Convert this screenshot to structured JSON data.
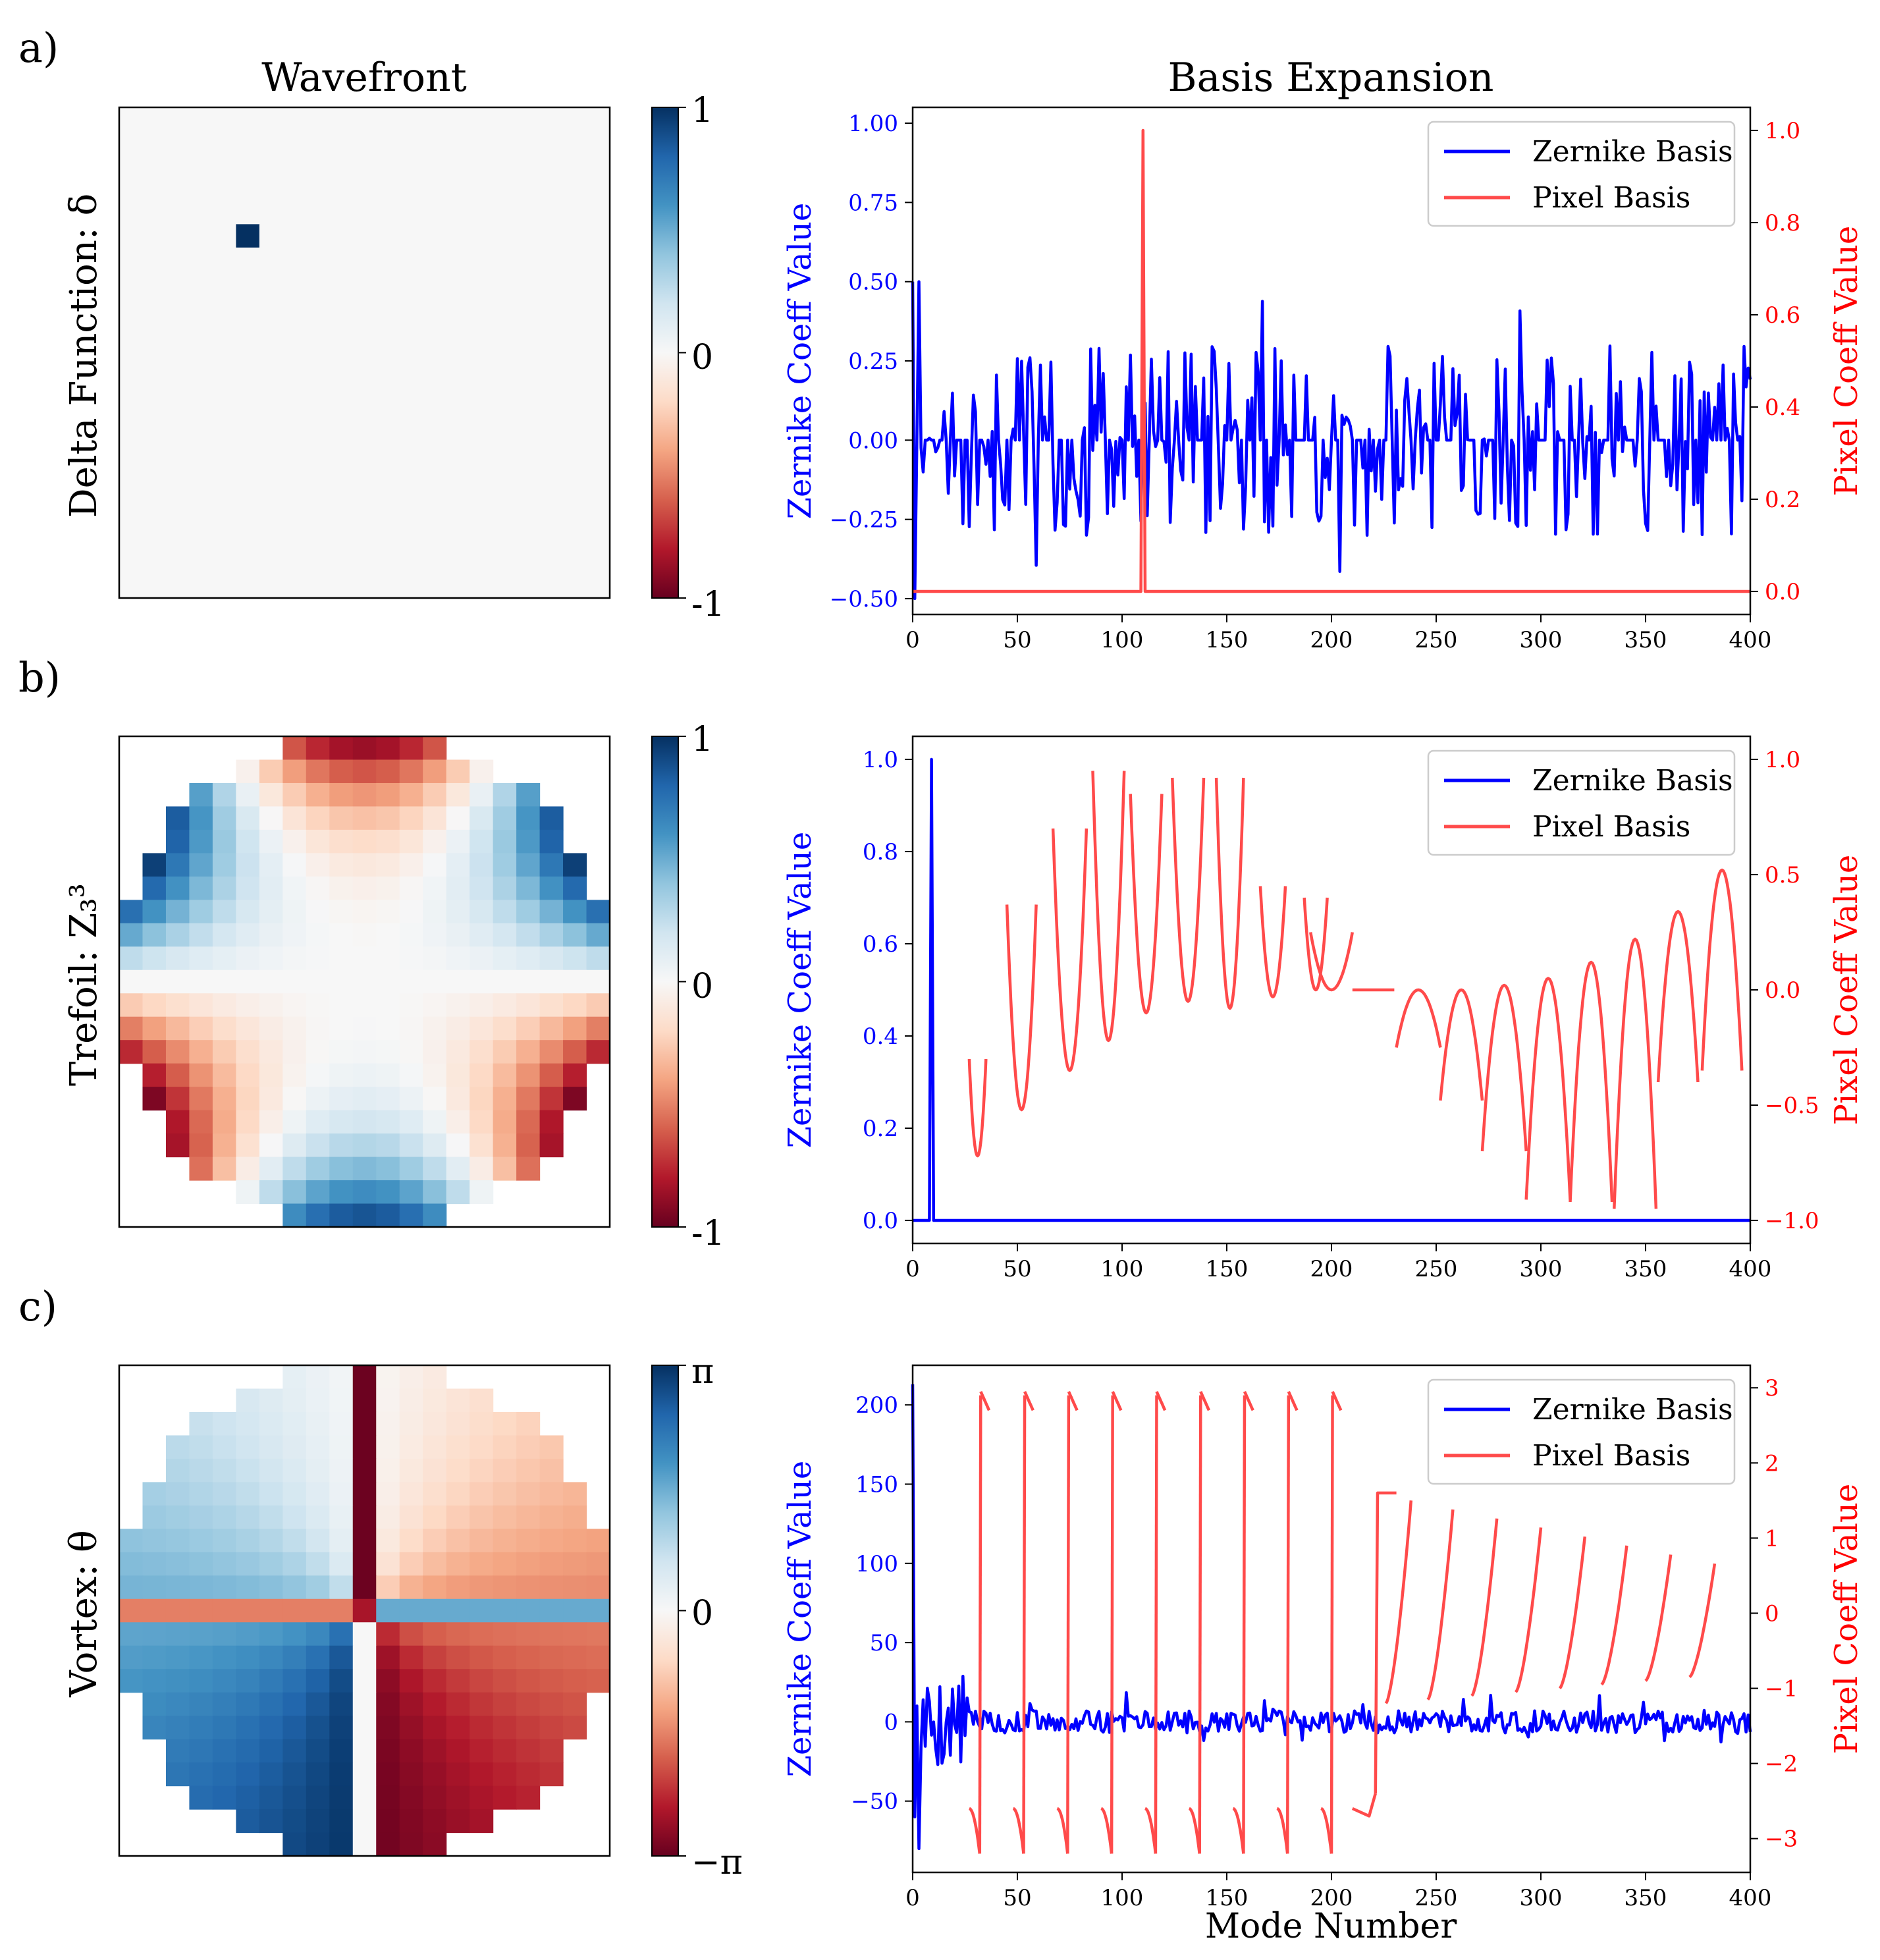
{
  "panel_letters": [
    "a)",
    "b)",
    "c)"
  ],
  "column_titles": {
    "wavefront": "Wavefront",
    "basis": "Basis Expansion"
  },
  "colors": {
    "zernike": "#0000ff",
    "pixel": "#ff4a4a",
    "pixel_axis": "#ff0000"
  },
  "chart_data": [
    {
      "type": "heatmap",
      "row": 0,
      "row_label": "Delta Function: δ",
      "grid": 21,
      "pattern": "delta",
      "delta_cell": [
        5,
        5
      ],
      "colorbar": {
        "ticks": [
          "1",
          "0",
          "-1"
        ],
        "range": [
          -1,
          1
        ]
      }
    },
    {
      "type": "line",
      "row": 0,
      "xlabel": "",
      "x_ticks": [
        "0",
        "50",
        "100",
        "150",
        "200",
        "250",
        "300",
        "350",
        "400"
      ],
      "xlim": [
        0,
        400
      ],
      "left_axis": {
        "label": "Zernike Coeff Value",
        "ylim": [
          -0.55,
          1.05
        ],
        "ticks": [
          -0.5,
          -0.25,
          0.0,
          0.25,
          0.5,
          0.75,
          1.0
        ],
        "tick_labels": [
          "−0.50",
          "−0.25",
          "0.00",
          "0.25",
          "0.50",
          "0.75",
          "1.00"
        ]
      },
      "right_axis": {
        "label": "Pixel Coeff Value",
        "ylim": [
          -0.05,
          1.05
        ],
        "ticks": [
          0.0,
          0.2,
          0.4,
          0.6,
          0.8,
          1.0
        ],
        "tick_labels": [
          "0.0",
          "0.2",
          "0.4",
          "0.6",
          "0.8",
          "1.0"
        ]
      },
      "legend": {
        "position": "top-right",
        "entries": [
          "Zernike Basis",
          "Pixel Basis"
        ]
      },
      "series": [
        {
          "name": "Zernike Basis",
          "axis": "left",
          "generator": "zernike_delta",
          "seed": 17
        },
        {
          "name": "Pixel Basis",
          "axis": "right",
          "generator": "pixel_delta",
          "spike_at": 110
        }
      ]
    },
    {
      "type": "heatmap",
      "row": 1,
      "row_label": "Trefoil: Z₃³",
      "grid": 21,
      "pattern": "trefoil",
      "colorbar": {
        "ticks": [
          "1",
          "0",
          "-1"
        ],
        "range": [
          -1,
          1
        ]
      }
    },
    {
      "type": "line",
      "row": 1,
      "xlabel": "",
      "x_ticks": [
        "0",
        "50",
        "100",
        "150",
        "200",
        "250",
        "300",
        "350",
        "400"
      ],
      "xlim": [
        0,
        400
      ],
      "left_axis": {
        "label": "Zernike Coeff Value",
        "ylim": [
          -0.05,
          1.05
        ],
        "ticks": [
          0.0,
          0.2,
          0.4,
          0.6,
          0.8,
          1.0
        ],
        "tick_labels": [
          "0.0",
          "0.2",
          "0.4",
          "0.6",
          "0.8",
          "1.0"
        ]
      },
      "right_axis": {
        "label": "Pixel Coeff Value",
        "ylim": [
          -1.1,
          1.1
        ],
        "ticks": [
          -1.0,
          -0.5,
          0.0,
          0.5,
          1.0
        ],
        "tick_labels": [
          "−1.0",
          "−0.5",
          "0.0",
          "0.5",
          "1.0"
        ]
      },
      "legend": {
        "position": "top-right",
        "entries": [
          "Zernike Basis",
          "Pixel Basis"
        ]
      },
      "series": [
        {
          "name": "Zernike Basis",
          "axis": "left",
          "generator": "zernike_trefoil",
          "spike_at": 9,
          "spike_value": 1.0
        },
        {
          "name": "Pixel Basis",
          "axis": "right",
          "generator": "pixel_trefoil"
        }
      ]
    },
    {
      "type": "heatmap",
      "row": 2,
      "row_label": "Vortex: θ",
      "grid": 21,
      "pattern": "vortex",
      "colorbar": {
        "ticks": [
          "π",
          "0",
          "−π"
        ],
        "range": [
          -3.14159,
          3.14159
        ]
      }
    },
    {
      "type": "line",
      "row": 2,
      "xlabel": "Mode Number",
      "x_ticks": [
        "0",
        "50",
        "100",
        "150",
        "200",
        "250",
        "300",
        "350",
        "400"
      ],
      "xlim": [
        0,
        400
      ],
      "left_axis": {
        "label": "Zernike Coeff Value",
        "ylim": [
          -95,
          225
        ],
        "ticks": [
          -50,
          0,
          50,
          100,
          150,
          200
        ],
        "tick_labels": [
          "−50",
          "0",
          "50",
          "100",
          "150",
          "200"
        ]
      },
      "right_axis": {
        "label": "Pixel Coeff Value",
        "ylim": [
          -3.45,
          3.3
        ],
        "ticks": [
          -3,
          -2,
          -1,
          0,
          1,
          2,
          3
        ],
        "tick_labels": [
          "−3",
          "−2",
          "−1",
          "0",
          "1",
          "2",
          "3"
        ]
      },
      "legend": {
        "position": "top-right",
        "entries": [
          "Zernike Basis",
          "Pixel Basis"
        ]
      },
      "series": [
        {
          "name": "Zernike Basis",
          "axis": "left",
          "generator": "zernike_vortex",
          "start_value": 213,
          "seed": 5
        },
        {
          "name": "Pixel Basis",
          "axis": "right",
          "generator": "pixel_vortex"
        }
      ]
    }
  ]
}
